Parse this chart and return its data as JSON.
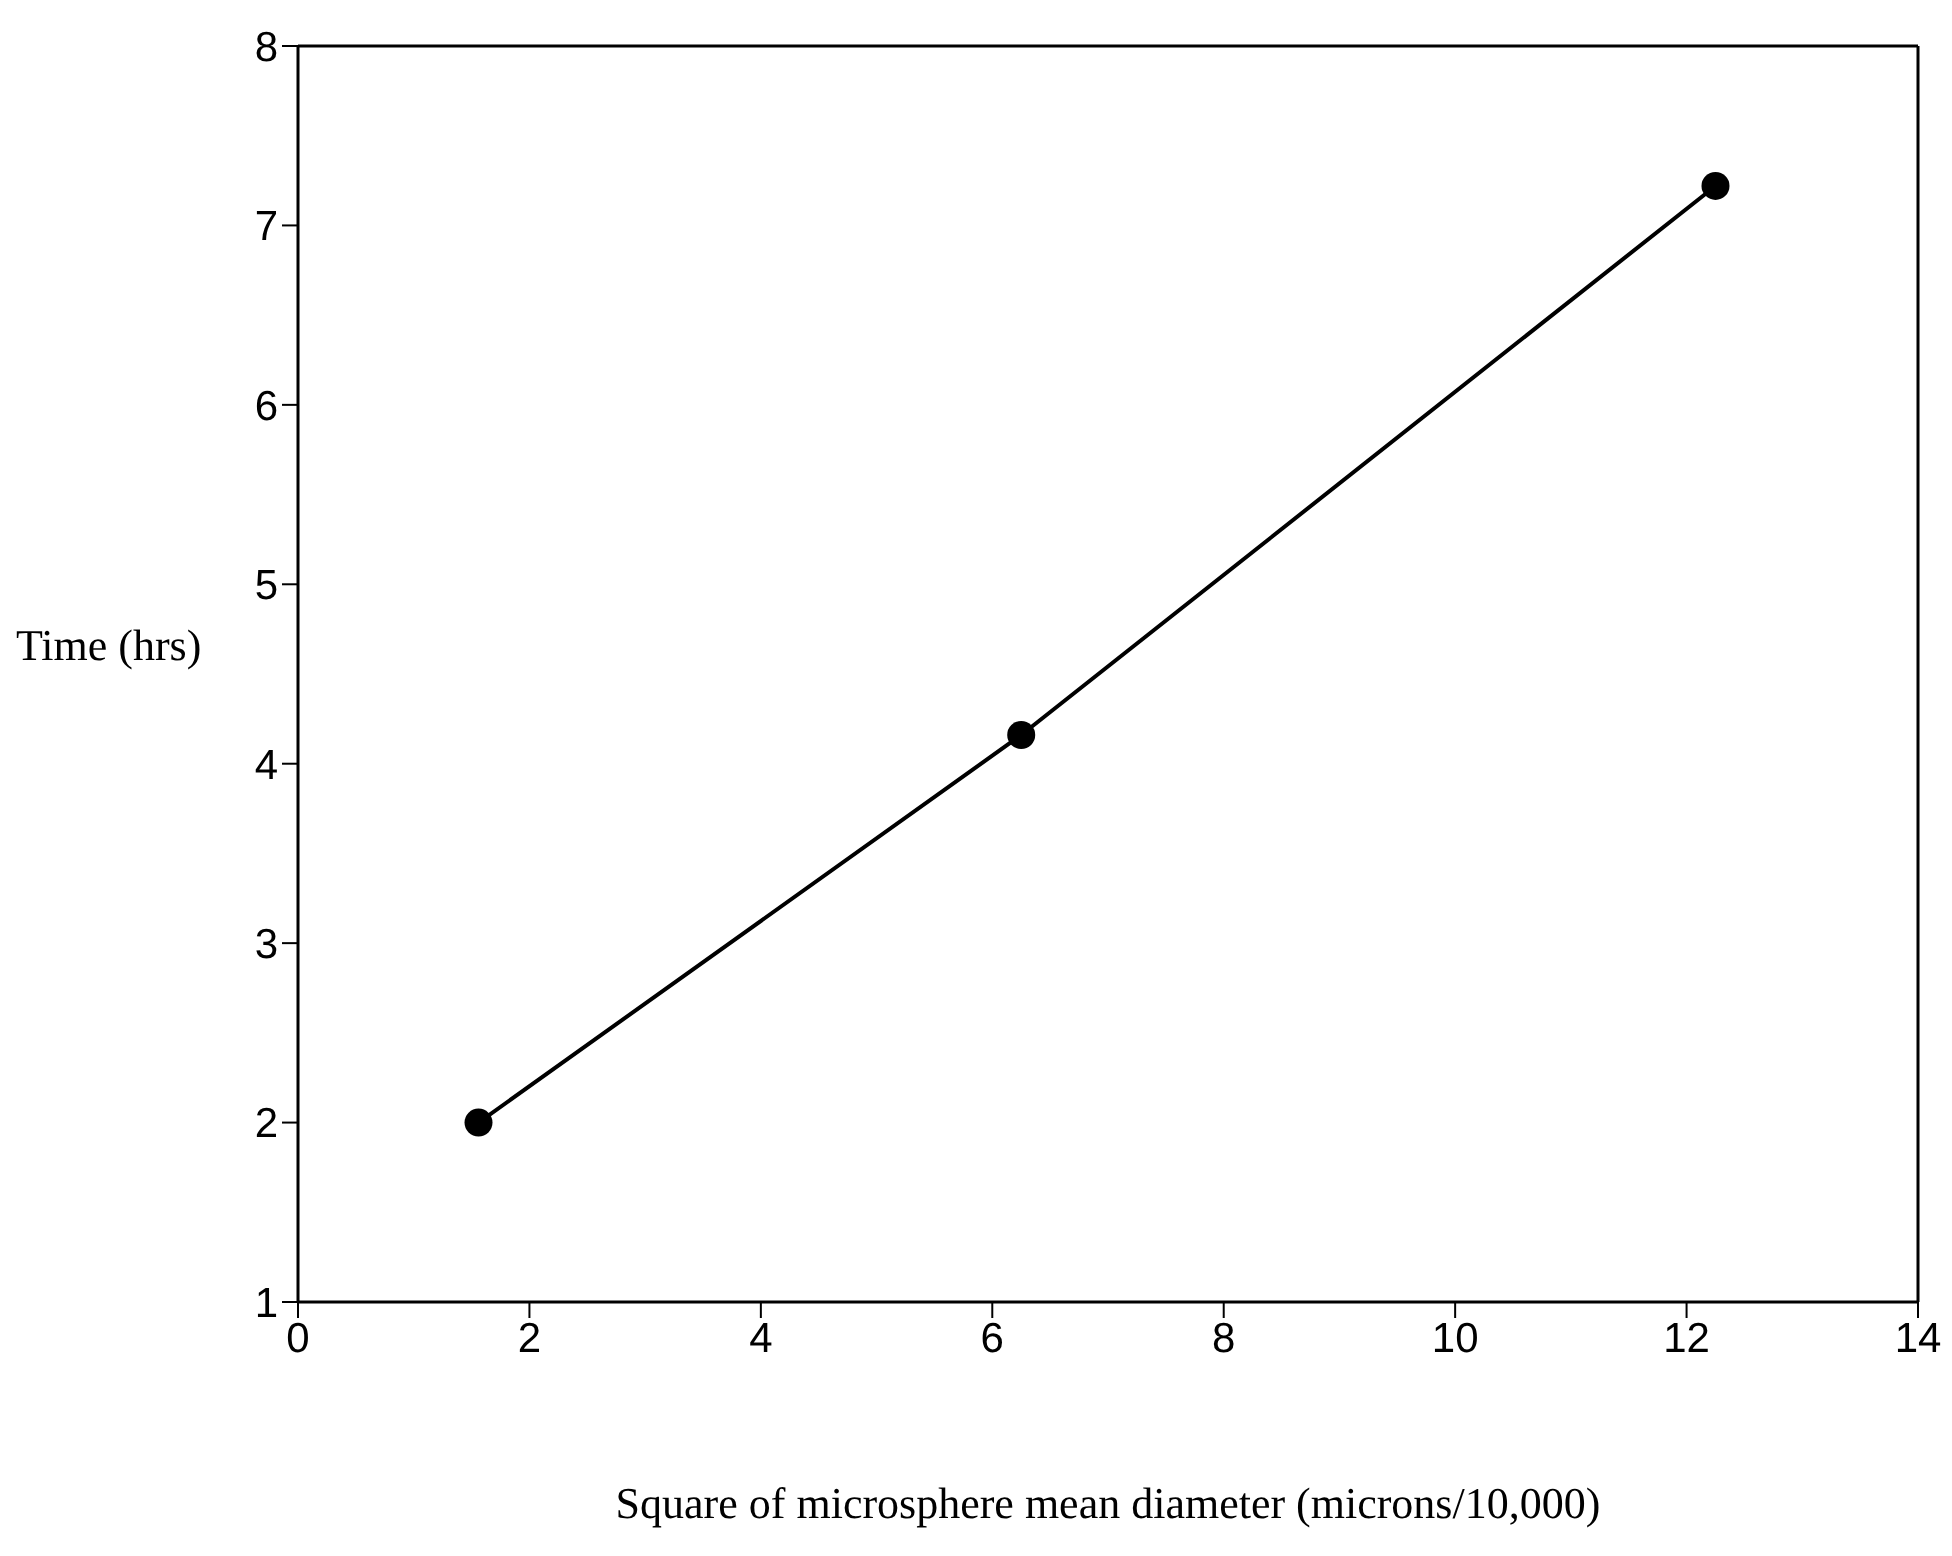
{
  "chart_data": {
    "type": "line",
    "xlabel": "Square of microsphere mean diameter (microns/10,000)",
    "ylabel": "Time (hrs)",
    "x": [
      1.56,
      6.25,
      12.25
    ],
    "series": [
      {
        "color": "#000000",
        "values": [
          2.0,
          4.16,
          7.22
        ]
      }
    ],
    "xlim": [
      0,
      14
    ],
    "xticks": [
      0,
      2,
      4,
      6,
      8,
      10,
      12,
      14
    ],
    "ylim": [
      1,
      8
    ],
    "yticks": [
      1,
      2,
      3,
      4,
      5,
      6,
      7,
      8
    ],
    "marker": "circle",
    "line_style": "solid",
    "grid": false,
    "legend": false
  }
}
